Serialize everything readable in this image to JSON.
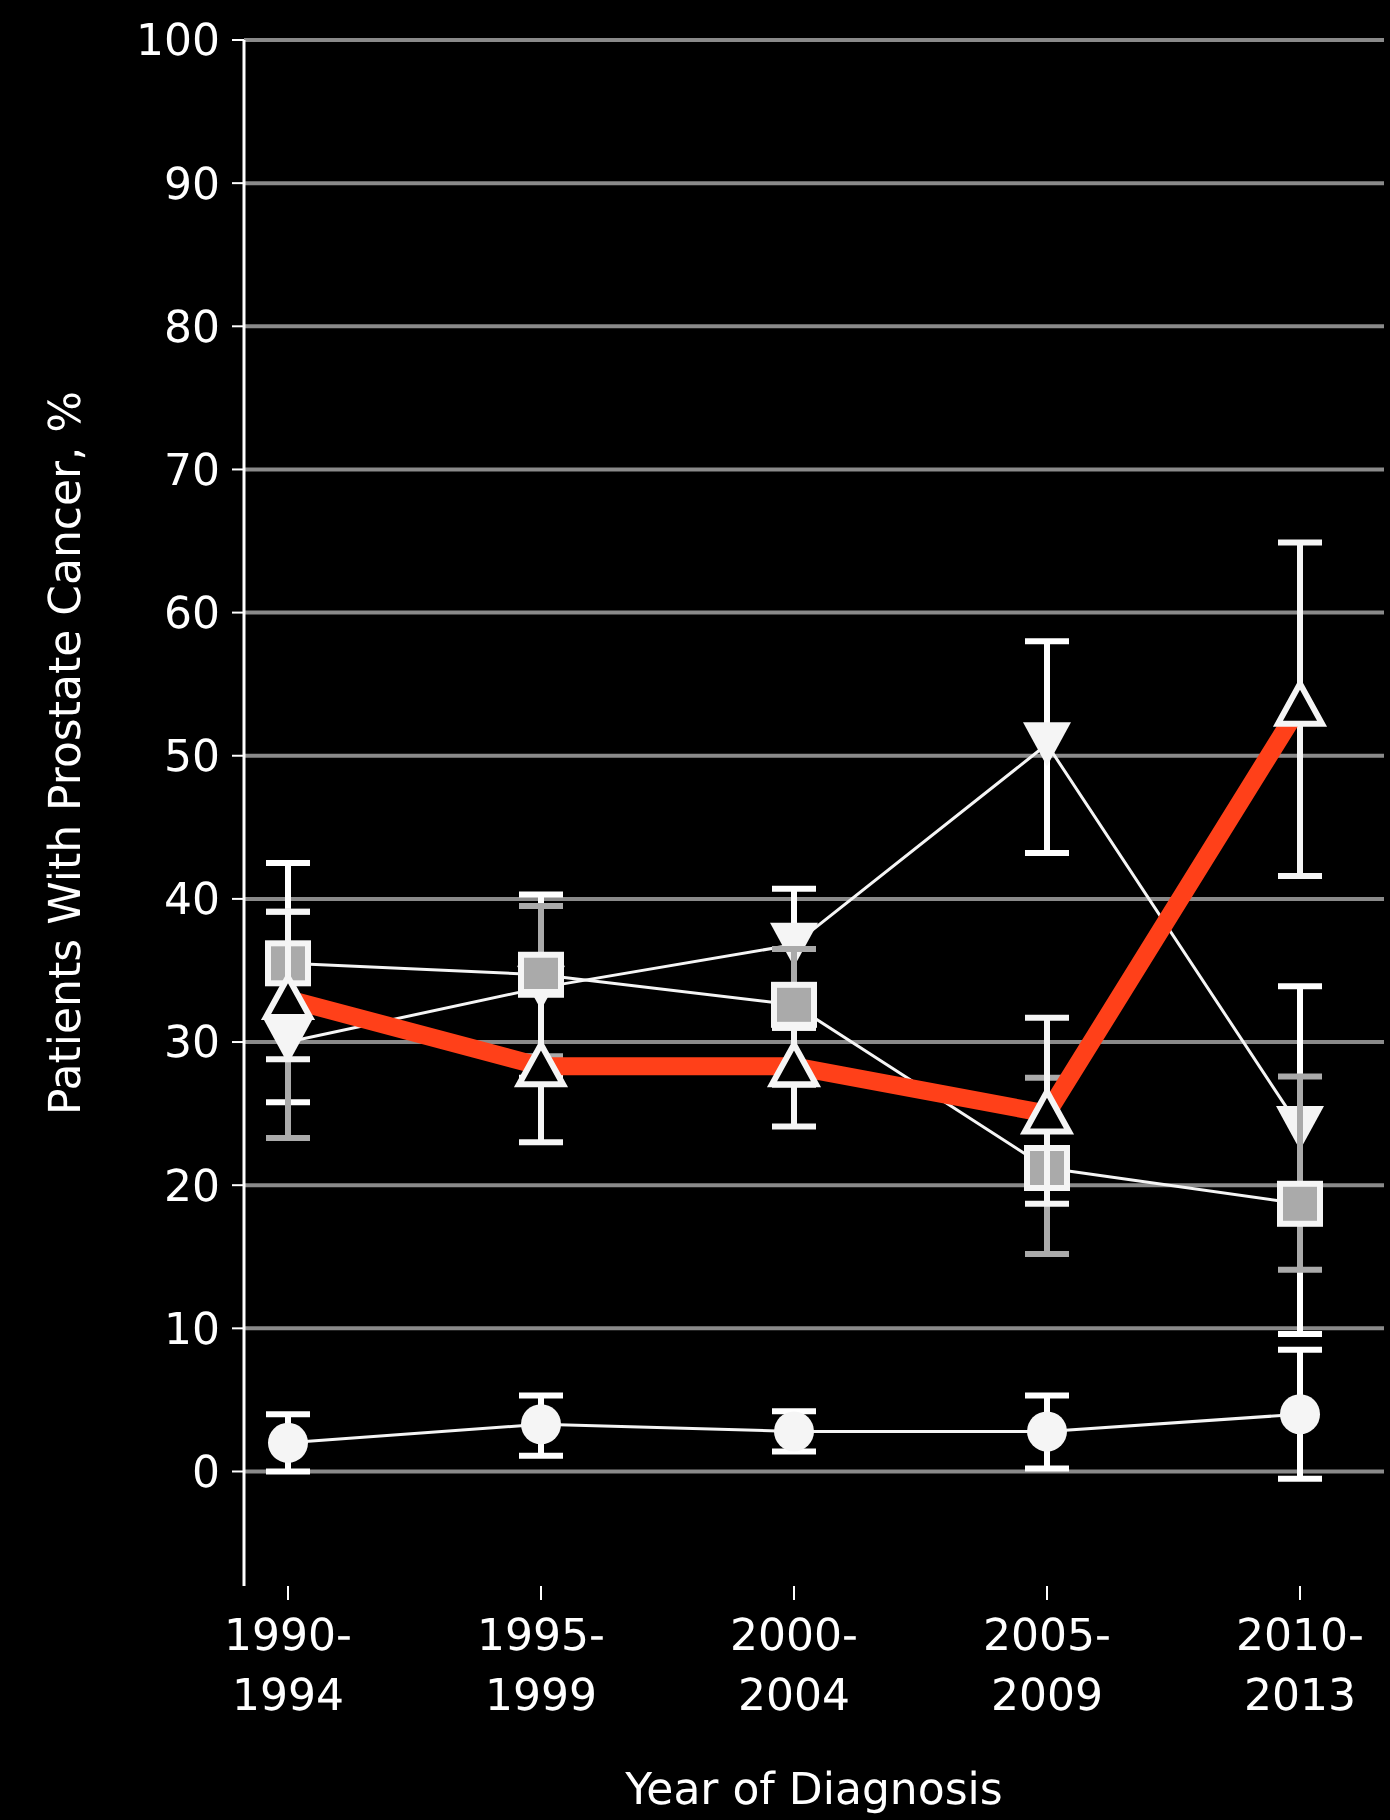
{
  "chart_data": {
    "type": "line",
    "xlabel": "Year of Diagnosis",
    "ylabel": "Patients With Prostate Cancer, %",
    "categories": [
      "1990-\n1994",
      "1995-\n1999",
      "2000-\n2004",
      "2005-\n2009",
      "2010-\n2013"
    ],
    "ylim": [
      -8,
      100
    ],
    "yticks": [
      0,
      10,
      20,
      30,
      40,
      50,
      60,
      70,
      80,
      90,
      100
    ],
    "grid": "y",
    "series": [
      {
        "color": "#ffffff",
        "marker": "triangle-down",
        "values": [
          30,
          33.8,
          36.8,
          50.8,
          24
        ],
        "errors": [
          [
            25.8,
            42.5
          ],
          [
            27.5,
            40.3
          ],
          [
            31,
            40.7
          ],
          [
            43.2,
            58
          ],
          [
            9.6,
            33.9
          ]
        ]
      },
      {
        "color": "#aaaaaa",
        "marker": "square",
        "values": [
          35.5,
          34.7,
          32.6,
          21.2,
          18.7
        ],
        "errors": [
          [
            23.3,
            39.1
          ],
          [
            29,
            39.5
          ],
          [
            27,
            36.5
          ],
          [
            15.2,
            27.5
          ],
          [
            14.1,
            27.6
          ]
        ]
      },
      {
        "color": "#ffffff",
        "marker": "circle",
        "values": [
          2,
          3.3,
          2.8,
          2.8,
          4
        ],
        "errors": [
          [
            0,
            4
          ],
          [
            1.1,
            5.3
          ],
          [
            1.4,
            4.2
          ],
          [
            0.2,
            5.3
          ],
          [
            -0.5,
            8.5
          ]
        ]
      },
      {
        "color": "#ff4019",
        "marker": "triangle",
        "values": [
          33,
          28.3,
          28.3,
          25,
          53.5
        ],
        "errors": [
          [
            28.8,
            39.1
          ],
          [
            23,
            33.5
          ],
          [
            24.1,
            31
          ],
          [
            18.7,
            31.7
          ],
          [
            41.6,
            64.9
          ]
        ]
      }
    ]
  }
}
